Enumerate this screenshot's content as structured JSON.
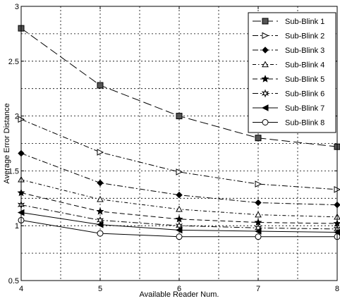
{
  "chart_data": {
    "type": "line",
    "title": "",
    "xlabel": "Available Reader Num.",
    "ylabel": "Average Error Distance",
    "x": [
      4,
      5,
      6,
      7,
      8
    ],
    "xlim": [
      4,
      8
    ],
    "ylim": [
      0.5,
      3
    ],
    "xticks": [
      "4",
      "5",
      "6",
      "7",
      "8"
    ],
    "yticks": [
      "0.5",
      "1",
      "1.5",
      "2",
      "2.5",
      "3"
    ],
    "grid": true,
    "legend_position": "top-right",
    "series": [
      {
        "name": "Sub-Blink 1",
        "marker": "square",
        "dash": "dash-long",
        "values": [
          2.8,
          2.28,
          2.0,
          1.8,
          1.72
        ]
      },
      {
        "name": "Sub-Blink 2",
        "marker": "triangle-right",
        "dash": "dash-dot",
        "values": [
          1.97,
          1.67,
          1.49,
          1.38,
          1.33
        ]
      },
      {
        "name": "Sub-Blink 3",
        "marker": "diamond",
        "dash": "dash-dot",
        "values": [
          1.66,
          1.39,
          1.28,
          1.21,
          1.19
        ]
      },
      {
        "name": "Sub-Blink 4",
        "marker": "triangle-up",
        "dash": "dash-dot-short",
        "values": [
          1.42,
          1.24,
          1.15,
          1.1,
          1.08
        ]
      },
      {
        "name": "Sub-Blink 5",
        "marker": "star",
        "dash": "dash",
        "values": [
          1.3,
          1.13,
          1.06,
          1.03,
          1.02
        ]
      },
      {
        "name": "Sub-Blink 6",
        "marker": "hexagram",
        "dash": "dash-dot",
        "values": [
          1.19,
          1.05,
          1.0,
          0.98,
          0.97
        ]
      },
      {
        "name": "Sub-Blink 7",
        "marker": "triangle-left",
        "dash": "solid",
        "values": [
          1.12,
          1.01,
          0.96,
          0.95,
          0.94
        ]
      },
      {
        "name": "Sub-Blink 8",
        "marker": "circle",
        "dash": "solid",
        "values": [
          1.05,
          0.93,
          0.9,
          0.9,
          0.9
        ]
      }
    ]
  }
}
